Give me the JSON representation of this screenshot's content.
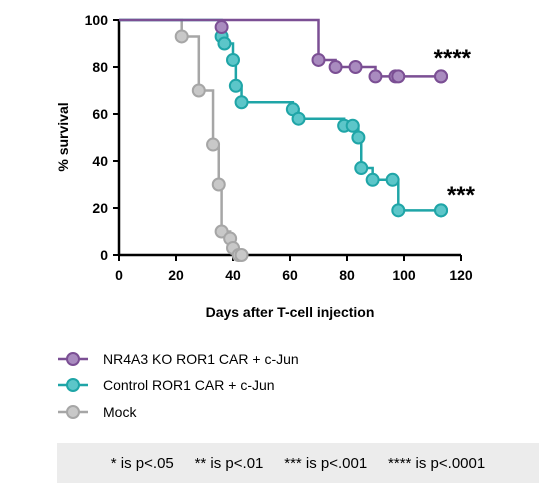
{
  "chart_data": {
    "type": "line",
    "subtype": "kaplan-meier survival",
    "xlabel": "Days after T-cell injection",
    "ylabel": "% survival",
    "xlim": [
      0,
      120
    ],
    "ylim": [
      0,
      100
    ],
    "xticks": [
      0,
      20,
      40,
      60,
      80,
      100,
      120
    ],
    "yticks": [
      0,
      20,
      40,
      60,
      80,
      100
    ],
    "grid": false,
    "legend_position": "bottom",
    "series": [
      {
        "name": "NR4A3 KO ROR1 CAR + c-Jun",
        "color": "#7b4f94",
        "fill": "#a98bbf",
        "steps": [
          [
            0,
            100
          ],
          [
            70,
            83
          ],
          [
            76,
            80
          ],
          [
            83,
            80
          ],
          [
            90,
            76
          ],
          [
            113,
            76
          ]
        ],
        "censored": [
          [
            36,
            97
          ],
          [
            97,
            76
          ],
          [
            98,
            76
          ],
          [
            113,
            76
          ]
        ],
        "significance": "****"
      },
      {
        "name": "Control ROR1 CAR + c-Jun",
        "color": "#1fa5a7",
        "fill": "#5cc6c9",
        "steps": [
          [
            0,
            100
          ],
          [
            36,
            93
          ],
          [
            37,
            90
          ],
          [
            40,
            83
          ],
          [
            41,
            72
          ],
          [
            43,
            65
          ],
          [
            61,
            62
          ],
          [
            63,
            58
          ],
          [
            79,
            55
          ],
          [
            82,
            55
          ],
          [
            84,
            50
          ],
          [
            85,
            37
          ],
          [
            89,
            32
          ],
          [
            96,
            32
          ],
          [
            98,
            19
          ],
          [
            113,
            19
          ]
        ],
        "censored": [
          [
            113,
            19
          ]
        ],
        "significance": "***"
      },
      {
        "name": "Mock",
        "color": "#a6a6a6",
        "fill": "#c8c8c8",
        "steps": [
          [
            0,
            100
          ],
          [
            22,
            93
          ],
          [
            28,
            70
          ],
          [
            33,
            47
          ],
          [
            35,
            30
          ],
          [
            36,
            10
          ],
          [
            39,
            7
          ],
          [
            40,
            3
          ],
          [
            42,
            0
          ],
          [
            43,
            0
          ]
        ],
        "censored": []
      }
    ]
  },
  "footnote": "* is p<.05     ** is p<.01     *** is p<.001     **** is p<.0001"
}
